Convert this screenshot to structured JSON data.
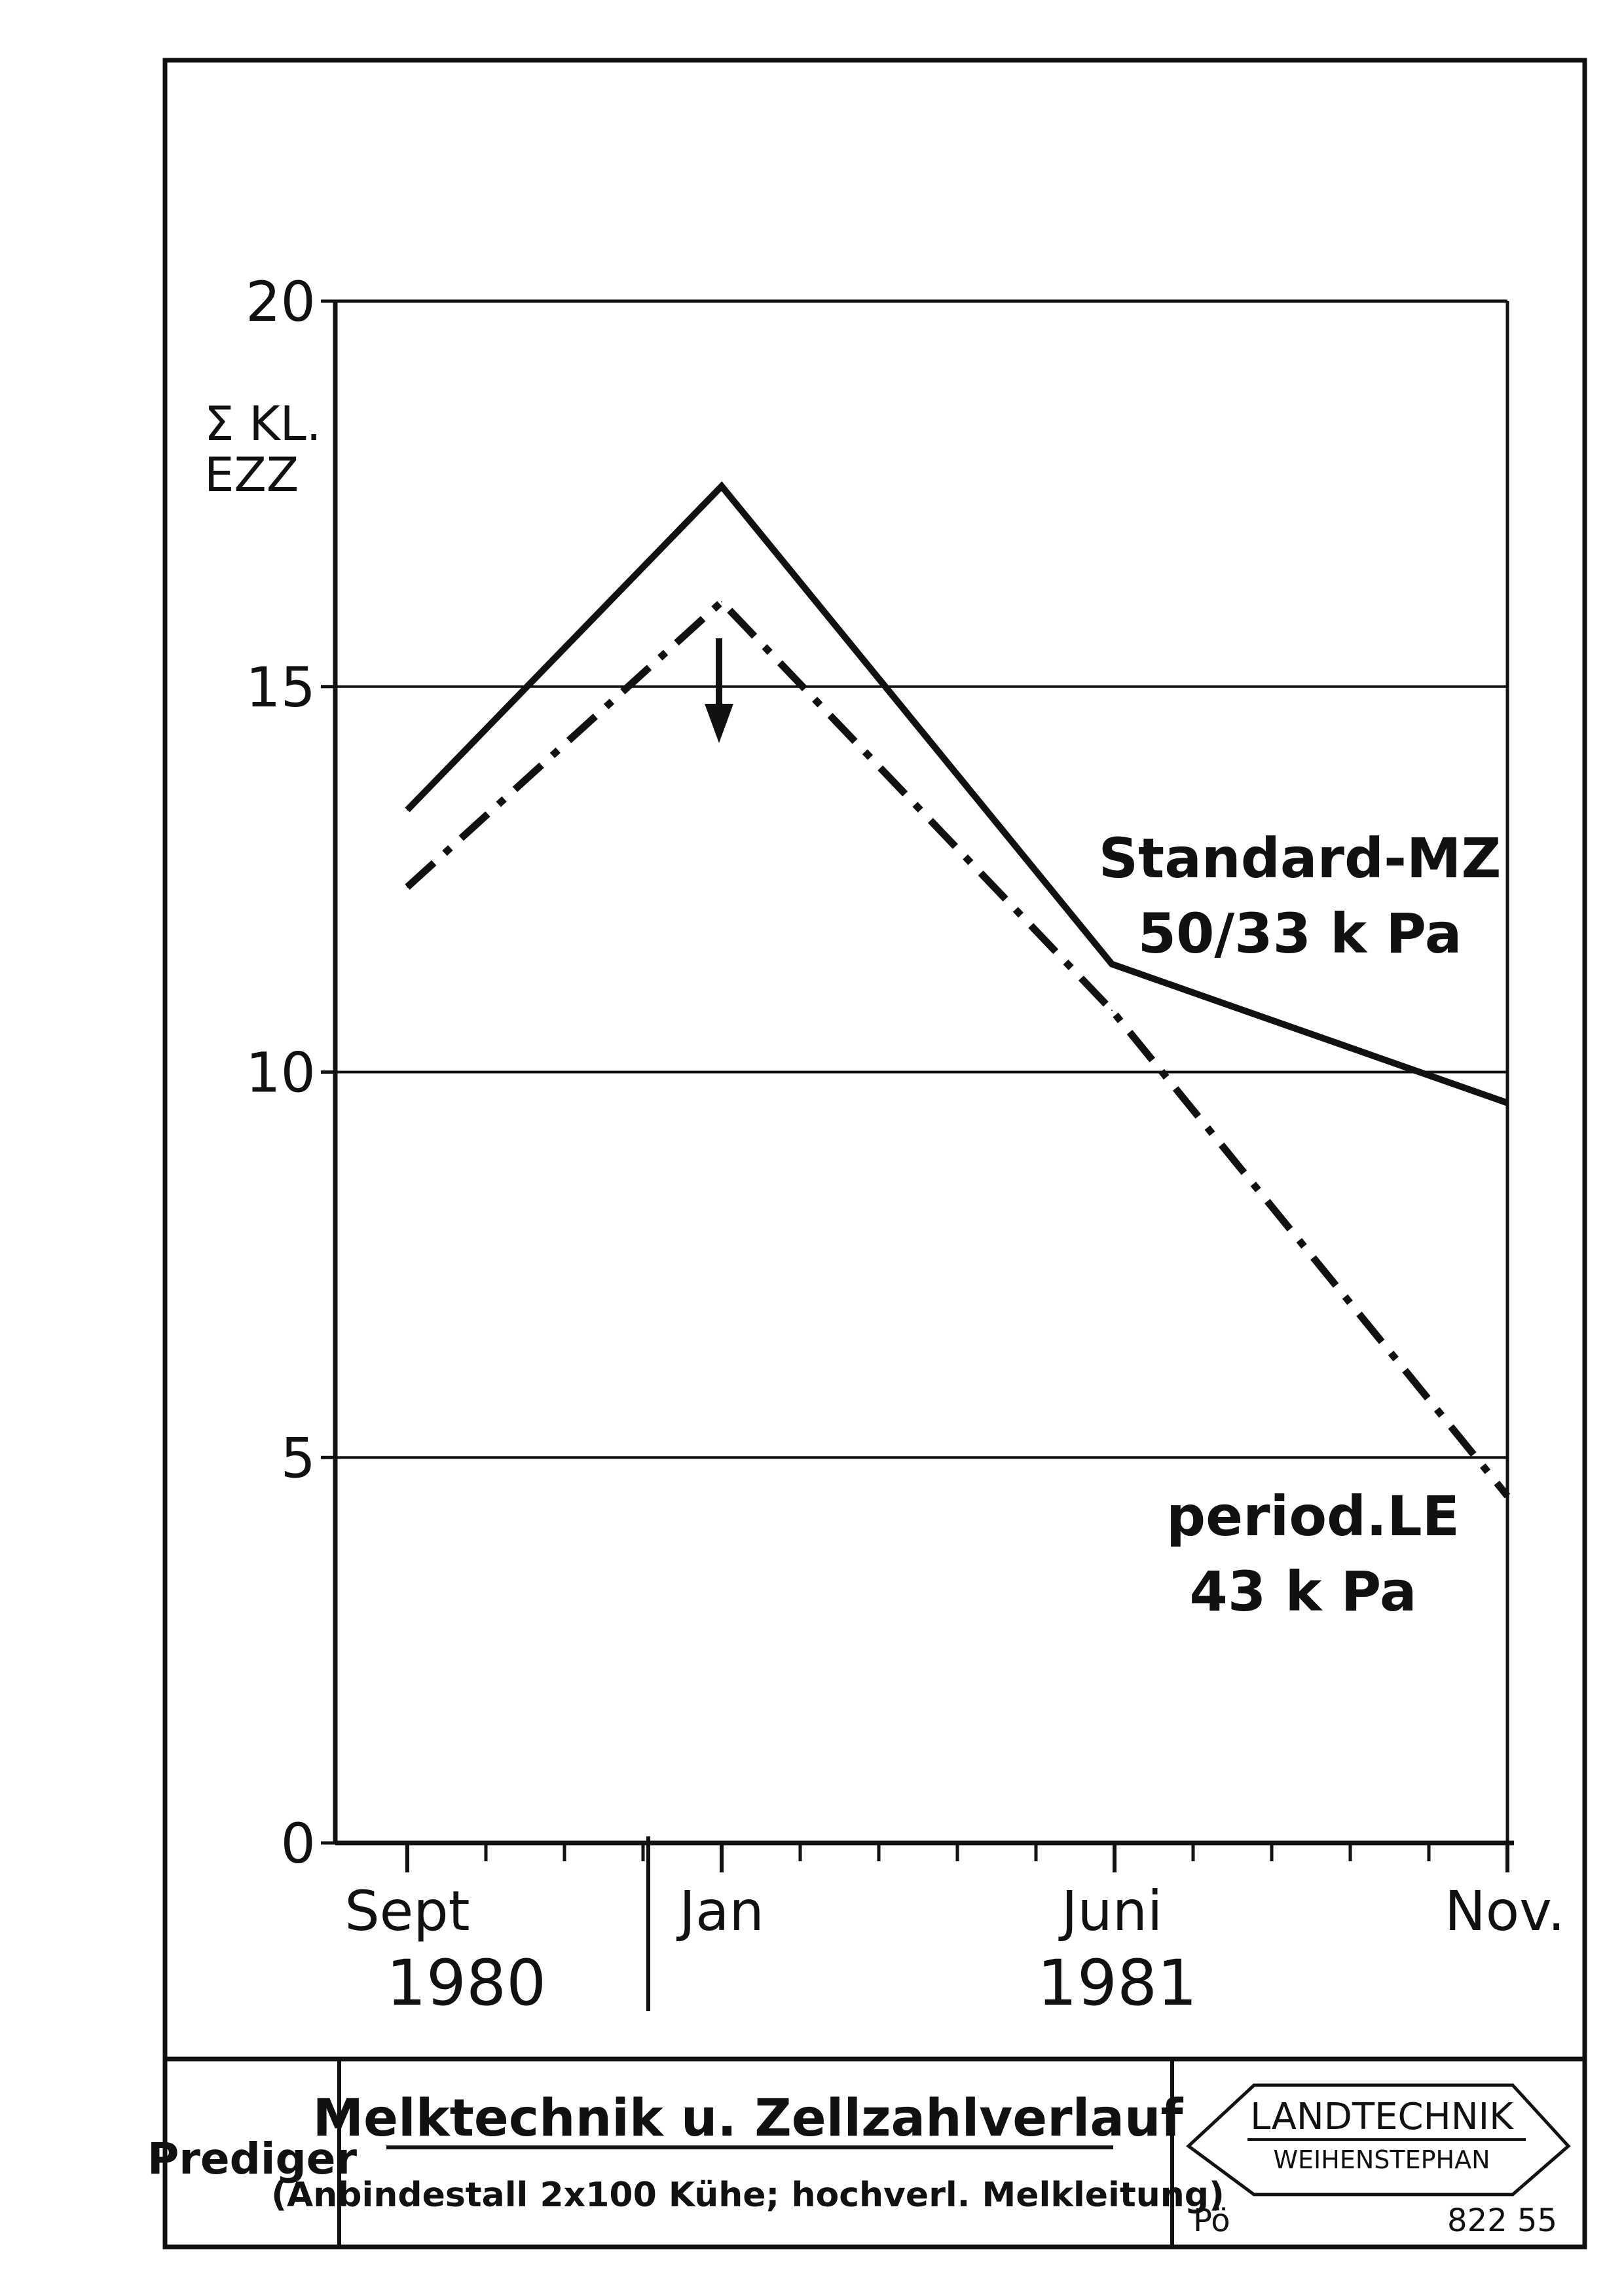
{
  "chart_data": {
    "type": "line",
    "ylabel": [
      "Σ KL.",
      "EZZ"
    ],
    "ylim": [
      0,
      20
    ],
    "y_ticks": [
      "0",
      "5",
      "10",
      "15",
      "20"
    ],
    "grid": true,
    "x_labels": [
      "Sept",
      "Jan",
      "Juni",
      "Nov."
    ],
    "year_labels": [
      "1980",
      "1981"
    ],
    "series": [
      {
        "name": [
          "Standard-MZ",
          "50/33 k Pa"
        ],
        "style": "solid",
        "points": [
          {
            "month": "Sept 1980",
            "y": 13.4
          },
          {
            "month": "Jan 1981",
            "y": 17.6
          },
          {
            "month": "Juni 1981",
            "y": 11.4
          },
          {
            "month": "Nov. 1981",
            "y": 9.6
          }
        ]
      },
      {
        "name": [
          "period.LE",
          "43 k Pa"
        ],
        "style": "dash-dot",
        "points": [
          {
            "month": "Sept 1980",
            "y": 12.4
          },
          {
            "month": "Jan 1981",
            "y": 16.1
          },
          {
            "month": "Juni 1981",
            "y": 10.8
          },
          {
            "month": "Nov. 1981",
            "y": 4.5
          }
        ]
      }
    ],
    "annotation": "downward-arrow"
  },
  "footer": {
    "author": "Prediger",
    "title": "Melktechnik u. Zellzahlverlauf",
    "subtitle": "(Anbindestall 2x100 Kühe; hochverl. Melkleitung)",
    "logo_line1": "LANDTECHNIK",
    "logo_line2": "WEIHENSTEPHAN",
    "code_left": "Pö",
    "code_right": "822 55"
  },
  "colors": {
    "ink": "#111111",
    "paper": "#ffffff"
  }
}
